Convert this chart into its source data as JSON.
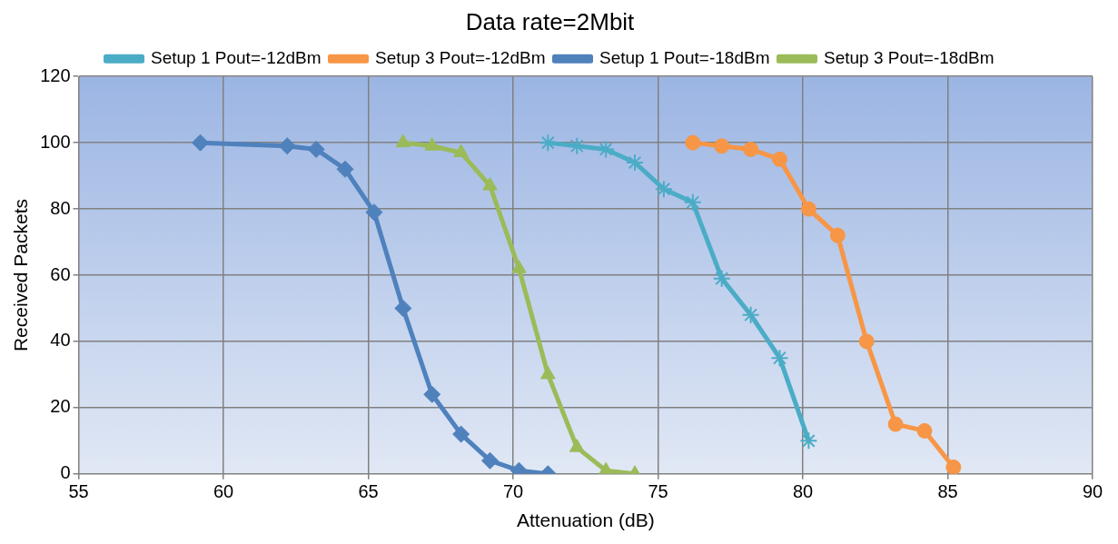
{
  "chart_data": {
    "type": "line",
    "title": "Data rate=2Mbit",
    "xlabel": "Attenuation (dB)",
    "ylabel": "Received Packets",
    "xlim": [
      55,
      90
    ],
    "xticks": [
      55,
      60,
      65,
      70,
      75,
      80,
      85,
      90
    ],
    "ylim": [
      0,
      120
    ],
    "yticks": [
      0,
      20,
      40,
      60,
      80,
      100,
      120
    ],
    "grid": true,
    "legend": "top",
    "series": [
      {
        "name": "Setup 1 Pout=-12dBm",
        "color": "#4bacc6",
        "marker": "cross",
        "x": [
          71.2,
          72.2,
          73.2,
          74.2,
          75.2,
          76.2,
          77.2,
          78.2,
          79.2,
          80.2
        ],
        "values": [
          100,
          99,
          98,
          94,
          86,
          82,
          59,
          48,
          35,
          10
        ]
      },
      {
        "name": "Setup 3 Pout=-12dBm",
        "color": "#f79646",
        "marker": "circle",
        "x": [
          76.2,
          77.2,
          78.2,
          79.2,
          80.2,
          81.2,
          82.2,
          83.2,
          84.2,
          85.2
        ],
        "values": [
          100,
          99,
          98,
          95,
          80,
          72,
          40,
          15,
          13,
          2
        ]
      },
      {
        "name": "Setup 1 Pout=-18dBm",
        "color": "#4f81bd",
        "marker": "diamond",
        "x": [
          59.2,
          62.2,
          63.2,
          64.2,
          65.2,
          66.2,
          67.2,
          68.2,
          69.2,
          70.2,
          71.2
        ],
        "values": [
          100,
          99,
          98,
          92,
          79,
          50,
          24,
          12,
          4,
          1,
          0
        ]
      },
      {
        "name": "Setup 3 Pout=-18dBm",
        "color": "#9bbb59",
        "marker": "triangle",
        "x": [
          66.2,
          67.2,
          68.2,
          69.2,
          70.2,
          71.2,
          72.2,
          73.2,
          74.2
        ],
        "values": [
          100,
          99,
          97,
          87,
          62,
          30,
          8,
          1,
          0
        ]
      }
    ]
  }
}
